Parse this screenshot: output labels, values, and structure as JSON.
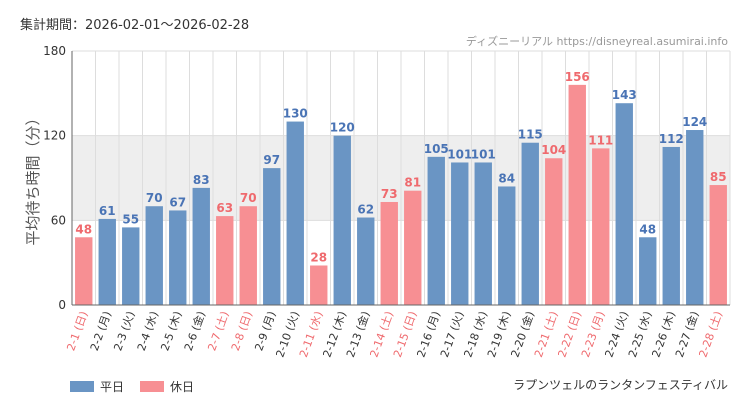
{
  "header": {
    "period": "集計期間：2026-02-01～2026-02-28",
    "watermark": "ディズニーリアル https://disneyreal.asumirai.info"
  },
  "footer": {
    "attraction": "ラプンツェルのランタンフェスティバル"
  },
  "colors": {
    "weekday": "#6a95c4",
    "holiday": "#f78f93",
    "weekday_label": "#4a74b5",
    "holiday_label": "#ef6a6e",
    "band": "#eeeeee",
    "grid": "#dddddd"
  },
  "chart_data": {
    "type": "bar",
    "title": "",
    "xlabel": "",
    "ylabel": "平均待ち時間（分）",
    "ylim": [
      0,
      180
    ],
    "yticks": [
      "0",
      "60",
      "120",
      "180"
    ],
    "highlight_band": [
      60,
      120
    ],
    "categories": [
      "2-1 (日)",
      "2-2 (月)",
      "2-3 (火)",
      "2-4 (水)",
      "2-5 (木)",
      "2-6 (金)",
      "2-7 (土)",
      "2-8 (日)",
      "2-9 (月)",
      "2-10 (火)",
      "2-11 (水)",
      "2-12 (木)",
      "2-13 (金)",
      "2-14 (土)",
      "2-15 (日)",
      "2-16 (月)",
      "2-17 (火)",
      "2-18 (水)",
      "2-19 (木)",
      "2-20 (金)",
      "2-21 (土)",
      "2-22 (日)",
      "2-23 (月)",
      "2-24 (火)",
      "2-25 (水)",
      "2-26 (木)",
      "2-27 (金)",
      "2-28 (土)"
    ],
    "values": [
      48,
      61,
      55,
      70,
      67,
      83,
      63,
      70,
      97,
      130,
      28,
      120,
      62,
      73,
      81,
      105,
      101,
      101,
      84,
      115,
      104,
      156,
      111,
      143,
      48,
      112,
      124,
      85
    ],
    "day_type": [
      "休日",
      "平日",
      "平日",
      "平日",
      "平日",
      "平日",
      "休日",
      "休日",
      "平日",
      "平日",
      "休日",
      "平日",
      "平日",
      "休日",
      "休日",
      "平日",
      "平日",
      "平日",
      "平日",
      "平日",
      "休日",
      "休日",
      "休日",
      "平日",
      "平日",
      "平日",
      "平日",
      "休日"
    ],
    "legend": [
      {
        "name": "平日",
        "color": "#6a95c4"
      },
      {
        "name": "休日",
        "color": "#f78f93"
      }
    ]
  }
}
